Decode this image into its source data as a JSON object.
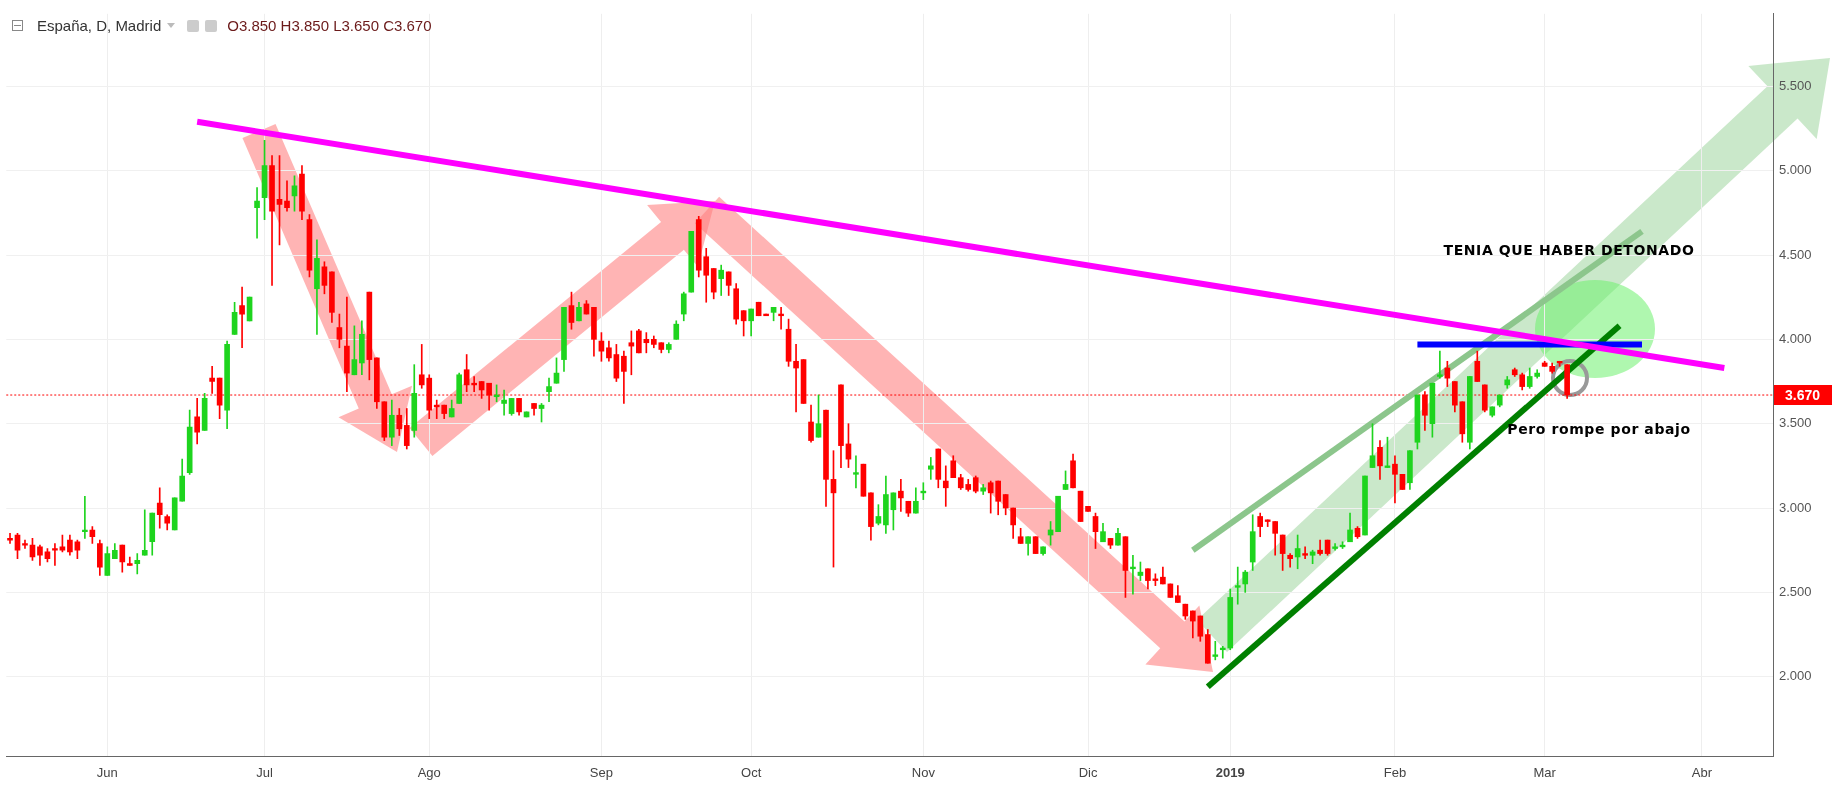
{
  "chart_data": {
    "type": "candlestick",
    "title": "España, D, Madrid",
    "subtitle": "O3.850 H3.850 L3.650 C3.670",
    "categories": [
      null,
      null,
      null,
      null,
      null,
      null,
      null,
      null,
      null,
      null,
      null,
      null,
      null,
      "Jun",
      null,
      null,
      null,
      null,
      null,
      null,
      null,
      null,
      null,
      null,
      null,
      null,
      null,
      null,
      null,
      null,
      null,
      null,
      null,
      null,
      "Jul",
      null,
      null,
      null,
      null,
      null,
      null,
      null,
      null,
      null,
      null,
      null,
      null,
      null,
      null,
      null,
      null,
      null,
      null,
      null,
      null,
      null,
      "Ago",
      null,
      null,
      null,
      null,
      null,
      null,
      null,
      null,
      null,
      null,
      null,
      null,
      null,
      null,
      null,
      null,
      null,
      null,
      null,
      null,
      null,
      null,
      "Sep",
      null,
      null,
      null,
      null,
      null,
      null,
      null,
      null,
      null,
      null,
      null,
      null,
      null,
      null,
      null,
      null,
      null,
      null,
      null,
      "Oct",
      null,
      null,
      null,
      null,
      null,
      null,
      null,
      null,
      null,
      null,
      null,
      null,
      null,
      null,
      null,
      null,
      null,
      null,
      null,
      null,
      null,
      null,
      "Nov",
      null,
      null,
      null,
      null,
      null,
      null,
      null,
      null,
      null,
      null,
      null,
      null,
      null,
      null,
      null,
      null,
      null,
      null,
      null,
      null,
      null,
      "Dic",
      null,
      null,
      null,
      null,
      null,
      null,
      null,
      null,
      null,
      null,
      null,
      null,
      null,
      null,
      null,
      null,
      null,
      null,
      "2019",
      null,
      null,
      null,
      null,
      null,
      null,
      null,
      null,
      null,
      null,
      null,
      null,
      null,
      null,
      null,
      null,
      null,
      null,
      null,
      null,
      null,
      "Feb",
      null,
      null,
      null,
      null,
      null,
      null,
      null,
      null,
      null,
      null,
      null,
      null,
      null,
      null,
      null,
      null,
      null,
      null,
      null,
      "Mar",
      null,
      null,
      null,
      null,
      null,
      null,
      null,
      null,
      null,
      null,
      null,
      null,
      null,
      null,
      null,
      null,
      null,
      null,
      null,
      null,
      "Abr",
      null,
      null,
      null,
      null,
      null,
      null,
      null,
      null,
      null
    ],
    "ohlc": [
      [
        2.82,
        2.85,
        2.79,
        2.81
      ],
      [
        2.84,
        2.85,
        2.7,
        2.75
      ],
      [
        2.79,
        2.81,
        2.76,
        2.78
      ],
      [
        2.78,
        2.82,
        2.69,
        2.71
      ],
      [
        2.77,
        2.78,
        2.66,
        2.72
      ],
      [
        2.74,
        2.76,
        2.68,
        2.7
      ],
      [
        2.76,
        2.79,
        2.66,
        2.75
      ],
      [
        2.77,
        2.84,
        2.74,
        2.75
      ],
      [
        2.81,
        2.84,
        2.72,
        2.74
      ],
      [
        2.8,
        2.81,
        2.7,
        2.75
      ],
      [
        2.86,
        3.07,
        2.82,
        2.87
      ],
      [
        2.87,
        2.89,
        2.79,
        2.83
      ],
      [
        2.79,
        2.81,
        2.6,
        2.65
      ],
      [
        2.6,
        2.77,
        2.6,
        2.73
      ],
      [
        2.7,
        2.79,
        2.7,
        2.75
      ],
      [
        2.78,
        2.78,
        2.62,
        2.68
      ],
      [
        2.67,
        2.71,
        2.66,
        2.66
      ],
      [
        2.67,
        2.73,
        2.61,
        2.69
      ],
      [
        2.72,
        2.99,
        2.72,
        2.75
      ],
      [
        2.8,
        2.97,
        2.72,
        2.97
      ],
      [
        3.03,
        3.12,
        2.88,
        2.96
      ],
      [
        2.95,
        2.96,
        2.87,
        2.91
      ],
      [
        2.87,
        3.06,
        2.87,
        3.06
      ],
      [
        3.04,
        3.29,
        3.04,
        3.19
      ],
      [
        3.21,
        3.58,
        3.2,
        3.48
      ],
      [
        3.54,
        3.65,
        3.38,
        3.45
      ],
      [
        3.46,
        3.68,
        3.46,
        3.65
      ],
      [
        3.77,
        3.84,
        3.68,
        3.75
      ],
      [
        3.77,
        3.77,
        3.53,
        3.61
      ],
      [
        3.58,
        3.99,
        3.47,
        3.97
      ],
      [
        4.03,
        4.22,
        4.03,
        4.16
      ],
      [
        4.2,
        4.31,
        3.95,
        4.15
      ],
      [
        4.11,
        4.25,
        4.11,
        4.25
      ],
      [
        4.78,
        4.9,
        4.6,
        4.82
      ],
      [
        4.84,
        5.18,
        4.71,
        5.03
      ],
      [
        5.03,
        5.09,
        4.32,
        4.76
      ],
      [
        4.83,
        5.09,
        4.56,
        4.8
      ],
      [
        4.82,
        4.94,
        4.76,
        4.78
      ],
      [
        4.85,
        4.97,
        4.76,
        4.91
      ],
      [
        4.98,
        5.03,
        4.71,
        4.76
      ],
      [
        4.71,
        4.74,
        4.37,
        4.41
      ],
      [
        4.3,
        4.59,
        4.03,
        4.48
      ],
      [
        4.43,
        4.46,
        4.27,
        4.32
      ],
      [
        4.4,
        4.4,
        4.1,
        4.16
      ],
      [
        4.07,
        4.15,
        3.95,
        4.0
      ],
      [
        3.96,
        4.25,
        3.69,
        3.8
      ],
      [
        3.79,
        4.08,
        3.79,
        3.88
      ],
      [
        3.86,
        4.11,
        3.79,
        4.03
      ],
      [
        4.28,
        4.28,
        3.76,
        3.88
      ],
      [
        3.89,
        3.89,
        3.59,
        3.63
      ],
      [
        3.63,
        3.63,
        3.4,
        3.42
      ],
      [
        3.42,
        3.64,
        3.37,
        3.55
      ],
      [
        3.55,
        3.59,
        3.43,
        3.47
      ],
      [
        3.49,
        3.59,
        3.35,
        3.37
      ],
      [
        3.46,
        3.85,
        3.42,
        3.68
      ],
      [
        3.79,
        3.97,
        3.71,
        3.73
      ],
      [
        3.77,
        3.79,
        3.53,
        3.58
      ],
      [
        3.61,
        3.64,
        3.53,
        3.6
      ],
      [
        3.61,
        3.61,
        3.53,
        3.56
      ],
      [
        3.54,
        3.64,
        3.54,
        3.59
      ],
      [
        3.62,
        3.8,
        3.62,
        3.79
      ],
      [
        3.82,
        3.91,
        3.69,
        3.73
      ],
      [
        3.74,
        3.78,
        3.69,
        3.73
      ],
      [
        3.75,
        3.75,
        3.65,
        3.7
      ],
      [
        3.74,
        3.74,
        3.58,
        3.67
      ],
      [
        3.66,
        3.73,
        3.63,
        3.67
      ],
      [
        3.62,
        3.7,
        3.55,
        3.64
      ],
      [
        3.56,
        3.65,
        3.55,
        3.65
      ],
      [
        3.65,
        3.65,
        3.55,
        3.57
      ],
      [
        3.54,
        3.57,
        3.54,
        3.57
      ],
      [
        3.62,
        3.62,
        3.55,
        3.59
      ],
      [
        3.59,
        3.62,
        3.51,
        3.61
      ],
      [
        3.69,
        3.77,
        3.63,
        3.72
      ],
      [
        3.74,
        3.89,
        3.74,
        3.8
      ],
      [
        3.88,
        4.19,
        3.81,
        4.19
      ],
      [
        4.2,
        4.28,
        4.06,
        4.1
      ],
      [
        4.11,
        4.22,
        4.11,
        4.19
      ],
      [
        4.21,
        4.23,
        4.15,
        4.15
      ],
      [
        4.19,
        4.19,
        3.9,
        4.0
      ],
      [
        3.99,
        4.04,
        3.87,
        3.93
      ],
      [
        3.95,
        3.99,
        3.87,
        3.89
      ],
      [
        3.91,
        3.97,
        3.75,
        3.77
      ],
      [
        3.9,
        3.93,
        3.62,
        3.81
      ],
      [
        3.98,
        4.05,
        3.79,
        3.96
      ],
      [
        4.05,
        4.06,
        3.92,
        3.92
      ],
      [
        4.0,
        4.04,
        3.92,
        3.98
      ],
      [
        4.0,
        4.02,
        3.95,
        3.97
      ],
      [
        3.98,
        3.98,
        3.92,
        3.94
      ],
      [
        3.94,
        3.98,
        3.92,
        3.97
      ],
      [
        4.0,
        4.11,
        4.0,
        4.09
      ],
      [
        4.15,
        4.28,
        4.11,
        4.27
      ],
      [
        4.28,
        4.64,
        4.28,
        4.64
      ],
      [
        4.71,
        4.73,
        4.37,
        4.41
      ],
      [
        4.49,
        4.54,
        4.22,
        4.38
      ],
      [
        4.42,
        4.42,
        4.24,
        4.28
      ],
      [
        4.36,
        4.44,
        4.26,
        4.41
      ],
      [
        4.4,
        4.4,
        4.26,
        4.32
      ],
      [
        4.3,
        4.33,
        4.09,
        4.12
      ],
      [
        4.17,
        4.17,
        4.02,
        4.11
      ],
      [
        4.11,
        4.18,
        4.02,
        4.18
      ],
      [
        4.22,
        4.22,
        4.14,
        4.14
      ],
      [
        4.15,
        4.15,
        4.14,
        4.14
      ],
      [
        4.16,
        4.19,
        4.11,
        4.19
      ],
      [
        4.15,
        4.19,
        4.06,
        4.14
      ],
      [
        4.06,
        4.12,
        3.84,
        3.87
      ],
      [
        3.87,
        3.97,
        3.57,
        3.83
      ],
      [
        3.88,
        3.88,
        3.62,
        3.62
      ],
      [
        3.51,
        3.61,
        3.39,
        3.4
      ],
      [
        3.42,
        3.67,
        3.42,
        3.5
      ],
      [
        3.58,
        3.58,
        3.01,
        3.17
      ],
      [
        3.17,
        3.34,
        2.65,
        3.09
      ],
      [
        3.73,
        3.73,
        3.24,
        3.37
      ],
      [
        3.38,
        3.5,
        3.24,
        3.29
      ],
      [
        3.2,
        3.31,
        3.12,
        3.21
      ],
      [
        3.26,
        3.26,
        3.07,
        3.07
      ],
      [
        3.09,
        3.09,
        2.81,
        2.89
      ],
      [
        2.91,
        3.02,
        2.9,
        2.95
      ],
      [
        2.9,
        3.19,
        2.85,
        3.08
      ],
      [
        2.99,
        3.09,
        2.87,
        3.09
      ],
      [
        3.1,
        3.17,
        2.98,
        3.06
      ],
      [
        3.04,
        3.04,
        2.95,
        2.97
      ],
      [
        2.97,
        3.12,
        2.97,
        3.04
      ],
      [
        3.09,
        3.15,
        3.05,
        3.1
      ],
      [
        3.23,
        3.3,
        3.17,
        3.25
      ],
      [
        3.35,
        3.35,
        3.12,
        3.17
      ],
      [
        3.16,
        3.25,
        3.01,
        3.12
      ],
      [
        3.28,
        3.31,
        3.18,
        3.18
      ],
      [
        3.18,
        3.2,
        3.11,
        3.12
      ],
      [
        3.14,
        3.17,
        3.1,
        3.11
      ],
      [
        3.18,
        3.19,
        3.09,
        3.1
      ],
      [
        3.1,
        3.14,
        3.08,
        3.12
      ],
      [
        3.15,
        3.16,
        2.97,
        3.09
      ],
      [
        3.16,
        3.16,
        2.96,
        3.04
      ],
      [
        3.08,
        3.08,
        2.96,
        3.0
      ],
      [
        3.0,
        3.0,
        2.82,
        2.9
      ],
      [
        2.83,
        2.88,
        2.79,
        2.79
      ],
      [
        2.79,
        2.83,
        2.72,
        2.83
      ],
      [
        2.83,
        2.83,
        2.73,
        2.73
      ],
      [
        2.73,
        2.77,
        2.72,
        2.77
      ],
      [
        2.84,
        2.92,
        2.78,
        2.87
      ],
      [
        2.86,
        3.07,
        2.86,
        3.07
      ],
      [
        3.11,
        3.22,
        3.11,
        3.14
      ],
      [
        3.28,
        3.32,
        3.12,
        3.12
      ],
      [
        3.1,
        3.1,
        2.92,
        2.92
      ],
      [
        3.01,
        3.01,
        2.98,
        2.98
      ],
      [
        2.95,
        2.97,
        2.76,
        2.86
      ],
      [
        2.8,
        2.91,
        2.8,
        2.86
      ],
      [
        2.82,
        2.82,
        2.76,
        2.78
      ],
      [
        2.78,
        2.88,
        2.78,
        2.85
      ],
      [
        2.83,
        2.83,
        2.47,
        2.63
      ],
      [
        2.64,
        2.72,
        2.49,
        2.65
      ],
      [
        2.6,
        2.68,
        2.57,
        2.62
      ],
      [
        2.64,
        2.64,
        2.52,
        2.57
      ],
      [
        2.58,
        2.61,
        2.54,
        2.57
      ],
      [
        2.59,
        2.65,
        2.55,
        2.55
      ],
      [
        2.55,
        2.55,
        2.47,
        2.47
      ],
      [
        2.48,
        2.54,
        2.44,
        2.44
      ],
      [
        2.43,
        2.43,
        2.34,
        2.36
      ],
      [
        2.39,
        2.39,
        2.23,
        2.33
      ],
      [
        2.36,
        2.36,
        2.21,
        2.24
      ],
      [
        2.25,
        2.28,
        2.08,
        2.08
      ],
      [
        2.12,
        2.21,
        2.1,
        2.13
      ],
      [
        2.16,
        2.18,
        2.11,
        2.17
      ],
      [
        2.17,
        2.52,
        2.16,
        2.47
      ],
      [
        2.53,
        2.65,
        2.43,
        2.54
      ],
      [
        2.55,
        2.63,
        2.5,
        2.62
      ],
      [
        2.68,
        2.96,
        2.63,
        2.86
      ],
      [
        2.95,
        2.97,
        2.83,
        2.89
      ],
      [
        2.93,
        2.93,
        2.89,
        2.92
      ],
      [
        2.92,
        2.92,
        2.72,
        2.85
      ],
      [
        2.84,
        2.84,
        2.63,
        2.73
      ],
      [
        2.72,
        2.73,
        2.65,
        2.7
      ],
      [
        2.71,
        2.84,
        2.64,
        2.76
      ],
      [
        2.73,
        2.77,
        2.7,
        2.72
      ],
      [
        2.72,
        2.75,
        2.67,
        2.74
      ],
      [
        2.75,
        2.81,
        2.72,
        2.73
      ],
      [
        2.81,
        2.81,
        2.72,
        2.73
      ],
      [
        2.76,
        2.79,
        2.75,
        2.77
      ],
      [
        2.77,
        2.8,
        2.76,
        2.78
      ],
      [
        2.8,
        2.97,
        2.8,
        2.87
      ],
      [
        2.88,
        2.89,
        2.82,
        2.83
      ],
      [
        2.84,
        3.19,
        2.84,
        3.19
      ],
      [
        3.24,
        3.5,
        3.24,
        3.31
      ],
      [
        3.36,
        3.4,
        3.17,
        3.25
      ],
      [
        3.24,
        3.42,
        3.24,
        3.25
      ],
      [
        3.26,
        3.31,
        3.03,
        3.2
      ],
      [
        3.2,
        3.2,
        3.11,
        3.11
      ],
      [
        3.15,
        3.34,
        3.11,
        3.34
      ],
      [
        3.39,
        3.67,
        3.35,
        3.67
      ],
      [
        3.67,
        3.69,
        3.46,
        3.55
      ],
      [
        3.5,
        3.74,
        3.42,
        3.74
      ],
      [
        3.78,
        3.93,
        3.77,
        3.79
      ],
      [
        3.83,
        3.87,
        3.72,
        3.77
      ],
      [
        3.75,
        3.75,
        3.57,
        3.61
      ],
      [
        3.63,
        3.63,
        3.39,
        3.44
      ],
      [
        3.39,
        3.78,
        3.35,
        3.78
      ],
      [
        3.87,
        3.93,
        3.75,
        3.75
      ],
      [
        3.73,
        3.73,
        3.57,
        3.58
      ],
      [
        3.55,
        3.6,
        3.54,
        3.6
      ],
      [
        3.61,
        3.67,
        3.6,
        3.67
      ],
      [
        3.73,
        3.78,
        3.71,
        3.76
      ],
      [
        3.82,
        3.83,
        3.78,
        3.79
      ],
      [
        3.79,
        3.8,
        3.7,
        3.72
      ],
      [
        3.72,
        3.83,
        3.71,
        3.78
      ],
      [
        3.78,
        3.82,
        3.77,
        3.8
      ],
      [
        3.86,
        3.87,
        3.84,
        3.84
      ],
      [
        3.84,
        3.86,
        3.8,
        3.81
      ],
      [
        3.87,
        3.87,
        3.84,
        3.86
      ],
      [
        3.85,
        3.85,
        3.65,
        3.67
      ],
      null,
      null,
      null,
      null,
      null,
      null,
      null,
      null,
      null,
      null,
      null,
      null,
      null,
      null,
      null,
      null,
      null,
      null,
      null,
      null,
      null,
      null,
      null,
      null,
      null,
      null,
      null
    ],
    "series": [
      {
        "type": "line",
        "color": "#ff00ff",
        "values": [
          null,
          null,
          null,
          null,
          null,
          null,
          null,
          null,
          null,
          null,
          null,
          null,
          null,
          null,
          null,
          null,
          null,
          null,
          null,
          null,
          null,
          null,
          null,
          null,
          null,
          5.29,
          null,
          null,
          null,
          null,
          null,
          null,
          null,
          null,
          null,
          null,
          null,
          null,
          null,
          null,
          null,
          null,
          null,
          null,
          null,
          null,
          null,
          null,
          null,
          null,
          null,
          null,
          null,
          null,
          null,
          null,
          null,
          null,
          null,
          null,
          null,
          null,
          null,
          null,
          null,
          null,
          null,
          null,
          null,
          null,
          null,
          null,
          null,
          null,
          null,
          null,
          null,
          null,
          null,
          null,
          null,
          null,
          null,
          null,
          null,
          null,
          null,
          null,
          null,
          null,
          null,
          null,
          null,
          null,
          null,
          null,
          null,
          null,
          null,
          null,
          null,
          null,
          null,
          null,
          null,
          null,
          null,
          null,
          null,
          null,
          null,
          null,
          null,
          null,
          null,
          null,
          null,
          null,
          null,
          null,
          null,
          null,
          null,
          null,
          null,
          null,
          null,
          null,
          null,
          null,
          null,
          null,
          null,
          null,
          null,
          null,
          null,
          null,
          null,
          null,
          null,
          null,
          null,
          null,
          null,
          null,
          null,
          null,
          null,
          null,
          null,
          null,
          null,
          null,
          null,
          null,
          null,
          null,
          null,
          null,
          null,
          null,
          null,
          null,
          null,
          null,
          null,
          null,
          null,
          null,
          null,
          null,
          null,
          null,
          null,
          null,
          null,
          null,
          null,
          null,
          null,
          null,
          null,
          null,
          null,
          null,
          null,
          null,
          null,
          null,
          null,
          null,
          null,
          null,
          null,
          null,
          null,
          null,
          null,
          null,
          null,
          null,
          null,
          null,
          null,
          null,
          null,
          null,
          null,
          null,
          null,
          null,
          null,
          null,
          null,
          null,
          null,
          null,
          null,
          null,
          null,
          null,
          null,
          null,
          null,
          null,
          null,
          null,
          null,
          3.83,
          null,
          null,
          null,
          null,
          null,
          null
        ]
      },
      {
        "type": "line",
        "color": "#0000ff",
        "values": [
          null,
          null,
          null,
          null,
          null,
          null,
          null,
          null,
          null,
          null,
          null,
          null,
          null,
          null,
          null,
          null,
          null,
          null,
          null,
          null,
          null,
          null,
          null,
          null,
          null,
          null,
          null,
          null,
          null,
          null,
          null,
          null,
          null,
          null,
          null,
          null,
          null,
          null,
          null,
          null,
          null,
          null,
          null,
          null,
          null,
          null,
          null,
          null,
          null,
          null,
          null,
          null,
          null,
          null,
          null,
          null,
          null,
          null,
          null,
          null,
          null,
          null,
          null,
          null,
          null,
          null,
          null,
          null,
          null,
          null,
          null,
          null,
          null,
          null,
          null,
          null,
          null,
          null,
          null,
          null,
          null,
          null,
          null,
          null,
          null,
          null,
          null,
          null,
          null,
          null,
          null,
          null,
          null,
          null,
          null,
          null,
          null,
          null,
          null,
          null,
          null,
          null,
          null,
          null,
          null,
          null,
          null,
          null,
          null,
          null,
          null,
          null,
          null,
          null,
          null,
          null,
          null,
          null,
          null,
          null,
          null,
          null,
          null,
          null,
          null,
          null,
          null,
          null,
          null,
          null,
          null,
          null,
          null,
          null,
          null,
          null,
          null,
          null,
          null,
          null,
          null,
          null,
          null,
          null,
          null,
          null,
          null,
          null,
          null,
          null,
          null,
          null,
          null,
          null,
          null,
          null,
          null,
          null,
          null,
          null,
          null,
          null,
          null,
          null,
          null,
          null,
          null,
          null,
          null,
          null,
          null,
          null,
          null,
          null,
          null,
          null,
          null,
          null,
          null,
          null,
          null,
          null,
          null,
          null,
          null,
          null,
          null,
          null,
          3.97,
          null,
          null,
          null,
          null,
          null,
          null,
          null,
          null,
          null,
          null,
          null,
          null,
          null,
          null,
          null,
          null,
          null,
          null,
          null,
          null,
          null,
          null,
          null,
          null,
          null,
          null,
          null,
          null,
          null,
          3.97,
          null,
          null,
          null,
          null,
          null,
          null,
          null,
          null,
          null,
          null,
          null,
          null,
          null,
          null,
          null,
          null,
          null
        ]
      },
      {
        "type": "line",
        "color": "#008000",
        "values": [
          null,
          null,
          null,
          null,
          null,
          null,
          null,
          null,
          null,
          null,
          null,
          null,
          null,
          null,
          null,
          null,
          null,
          null,
          null,
          null,
          null,
          null,
          null,
          null,
          null,
          null,
          null,
          null,
          null,
          null,
          null,
          null,
          null,
          null,
          null,
          null,
          null,
          null,
          null,
          null,
          null,
          null,
          null,
          null,
          null,
          null,
          null,
          null,
          null,
          null,
          null,
          null,
          null,
          null,
          null,
          null,
          null,
          null,
          null,
          null,
          null,
          null,
          null,
          null,
          null,
          null,
          null,
          null,
          null,
          null,
          null,
          null,
          null,
          null,
          null,
          null,
          null,
          null,
          null,
          null,
          null,
          null,
          null,
          null,
          null,
          null,
          null,
          null,
          null,
          null,
          null,
          null,
          null,
          null,
          null,
          null,
          null,
          null,
          null,
          null,
          null,
          null,
          null,
          null,
          null,
          null,
          null,
          null,
          null,
          null,
          null,
          null,
          null,
          null,
          null,
          null,
          null,
          null,
          null,
          null,
          null,
          null,
          null,
          null,
          null,
          null,
          null,
          null,
          null,
          null,
          null,
          null,
          null,
          null,
          null,
          null,
          null,
          null,
          null,
          null,
          null,
          null,
          null,
          null,
          null,
          null,
          null,
          null,
          null,
          null,
          null,
          null,
          null,
          null,
          null,
          null,
          null,
          null,
          null,
          null,
          1.94,
          null,
          null,
          null,
          null,
          null,
          null,
          null,
          null,
          null,
          null,
          null,
          null,
          null,
          null,
          null,
          null,
          null,
          null,
          null,
          null,
          null,
          null,
          null,
          null,
          null,
          null,
          null,
          null,
          null,
          null,
          null,
          null,
          null,
          null,
          null,
          null,
          null,
          null,
          null,
          null,
          null,
          null,
          null,
          null,
          null,
          null,
          null,
          null,
          null,
          null,
          null,
          null,
          null,
          null,
          4.08,
          null,
          null,
          null,
          null,
          null,
          null,
          null,
          null,
          null,
          null,
          null,
          null,
          null,
          null,
          null,
          null,
          null,
          null,
          null,
          null
        ]
      },
      {
        "type": "line",
        "color": "#8cc68c",
        "values": [
          null,
          null,
          null,
          null,
          null,
          null,
          null,
          null,
          null,
          null,
          null,
          null,
          null,
          null,
          null,
          null,
          null,
          null,
          null,
          null,
          null,
          null,
          null,
          null,
          null,
          null,
          null,
          null,
          null,
          null,
          null,
          null,
          null,
          null,
          null,
          null,
          null,
          null,
          null,
          null,
          null,
          null,
          null,
          null,
          null,
          null,
          null,
          null,
          null,
          null,
          null,
          null,
          null,
          null,
          null,
          null,
          null,
          null,
          null,
          null,
          null,
          null,
          null,
          null,
          null,
          null,
          null,
          null,
          null,
          null,
          null,
          null,
          null,
          null,
          null,
          null,
          null,
          null,
          null,
          null,
          null,
          null,
          null,
          null,
          null,
          null,
          null,
          null,
          null,
          null,
          null,
          null,
          null,
          null,
          null,
          null,
          null,
          null,
          null,
          null,
          null,
          null,
          null,
          null,
          null,
          null,
          null,
          null,
          null,
          null,
          null,
          null,
          null,
          null,
          null,
          null,
          null,
          null,
          null,
          null,
          null,
          null,
          null,
          null,
          null,
          null,
          null,
          null,
          null,
          null,
          null,
          null,
          null,
          null,
          null,
          null,
          null,
          null,
          null,
          null,
          null,
          null,
          null,
          null,
          null,
          null,
          null,
          null,
          null,
          null,
          null,
          null,
          null,
          null,
          null,
          null,
          null,
          null,
          2.75,
          null,
          null,
          null,
          null,
          null,
          null,
          null,
          null,
          null,
          null,
          null,
          null,
          null,
          null,
          null,
          null,
          null,
          null,
          null,
          null,
          null,
          null,
          null,
          null,
          null,
          null,
          null,
          null,
          null,
          null,
          null,
          null,
          null,
          null,
          null,
          null,
          null,
          null,
          null,
          null,
          null,
          null,
          null,
          null,
          null,
          null,
          null,
          null,
          null,
          null,
          null,
          null,
          null,
          null,
          null,
          null,
          null,
          null,
          null,
          4.64,
          null,
          null,
          null,
          null,
          null,
          null,
          null,
          null,
          null,
          null,
          null,
          null,
          null,
          null,
          null,
          null,
          null
        ]
      }
    ],
    "ylim": [
      1.53,
      5.93
    ],
    "yticks": [
      {
        "value": 2,
        "label": "2.000"
      },
      {
        "value": 2.5,
        "label": "2.500"
      },
      {
        "value": 3,
        "label": "3.000"
      },
      {
        "value": 3.5,
        "label": "3.500"
      },
      {
        "value": 4,
        "label": "4.000"
      },
      {
        "value": 4.5,
        "label": "4.500"
      },
      {
        "value": 5,
        "label": "5.000"
      },
      {
        "value": 5.5,
        "label": "5.500"
      }
    ],
    "grid": true,
    "ref_lines": [
      {
        "axis": "y",
        "value": 3.67,
        "label": "3.670",
        "color": "#ff0000",
        "line_style": "dotted"
      }
    ],
    "annotations": [
      "TENIA QUE HABER DETONADO",
      "Pero rompe por abajo"
    ]
  }
}
